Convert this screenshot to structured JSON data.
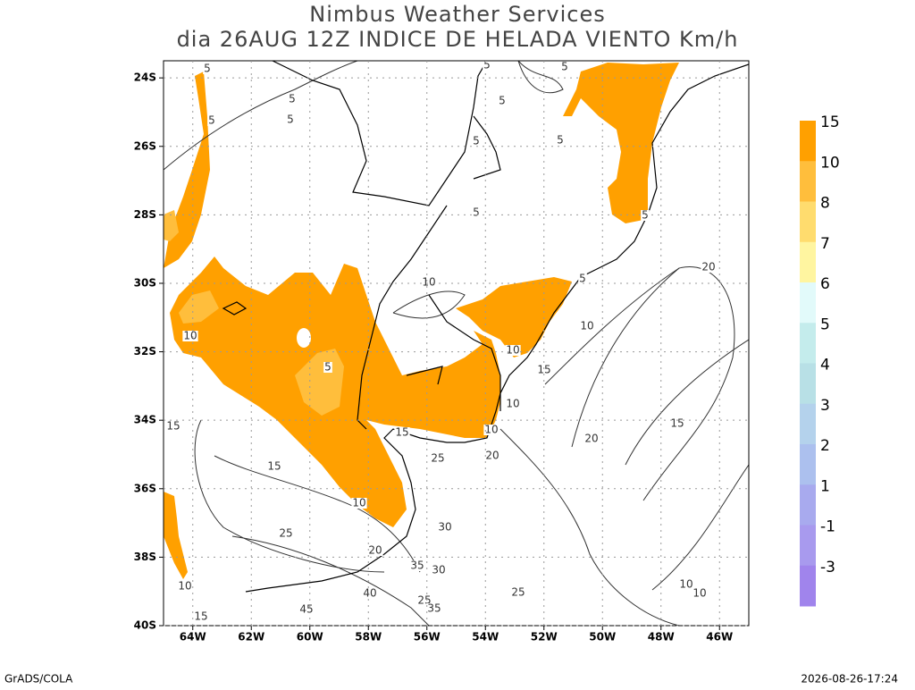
{
  "chart_data": {
    "type": "map",
    "title": "Nimbus Weather Services",
    "subtitle": "dia 26AUG 12Z INDICE DE HELADA VIENTO Km/h",
    "xlim": [
      -65,
      -45
    ],
    "ylim": [
      -40,
      -23.5
    ],
    "xticks": [
      {
        "value": -64,
        "label": "64W"
      },
      {
        "value": -62,
        "label": "62W"
      },
      {
        "value": -60,
        "label": "60W"
      },
      {
        "value": -58,
        "label": "58W"
      },
      {
        "value": -56,
        "label": "56W"
      },
      {
        "value": -54,
        "label": "54W"
      },
      {
        "value": -52,
        "label": "52W"
      },
      {
        "value": -50,
        "label": "50W"
      },
      {
        "value": -48,
        "label": "48W"
      },
      {
        "value": -46,
        "label": "46W"
      }
    ],
    "yticks": [
      {
        "value": -24,
        "label": "24S"
      },
      {
        "value": -26,
        "label": "26S"
      },
      {
        "value": -28,
        "label": "28S"
      },
      {
        "value": -30,
        "label": "30S"
      },
      {
        "value": -32,
        "label": "32S"
      },
      {
        "value": -34,
        "label": "34S"
      },
      {
        "value": -36,
        "label": "36S"
      },
      {
        "value": -38,
        "label": "38S"
      },
      {
        "value": -40,
        "label": "40S"
      }
    ],
    "grid": true,
    "colorbar": {
      "levels": [
        15,
        10,
        8,
        7,
        6,
        5,
        4,
        3,
        2,
        1,
        -1,
        -3
      ],
      "colors": [
        "#ffa000",
        "#ffbe3c",
        "#ffdc6e",
        "#fff5a0",
        "#e2fafa",
        "#c4ecec",
        "#b8e0e6",
        "#b4d2ec",
        "#acc0ee",
        "#a8aaee",
        "#a89aee",
        "#a084ec"
      ]
    },
    "contour_labels": [
      5,
      5,
      5,
      5,
      5,
      5,
      5,
      5,
      5,
      5,
      5,
      5,
      10,
      10,
      5,
      10,
      10,
      15,
      10,
      10,
      15,
      15,
      15,
      20,
      20,
      25,
      20,
      15,
      10,
      20,
      30,
      25,
      35,
      30,
      25,
      40,
      45,
      25,
      35,
      15,
      10,
      10,
      10
    ]
  },
  "footer": {
    "left": "GrADS/COLA",
    "right": "2026-08-26-17:24"
  }
}
